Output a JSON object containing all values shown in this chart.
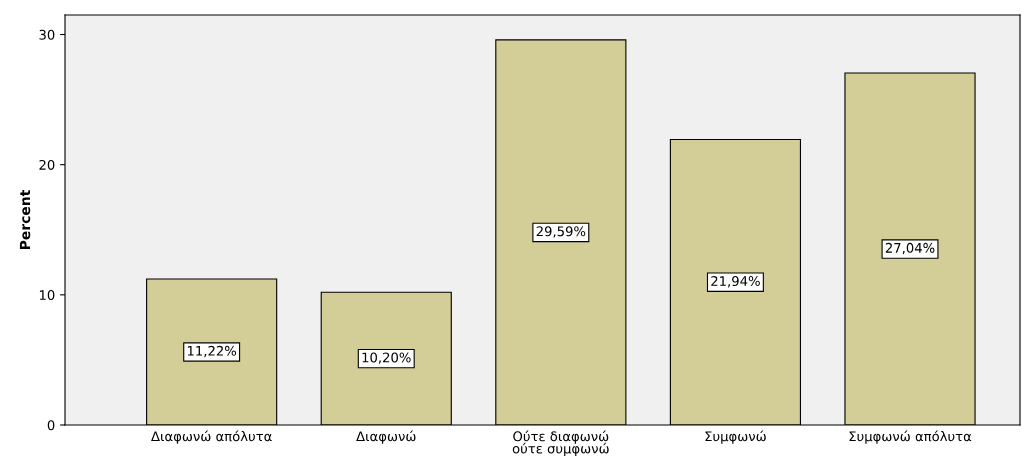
{
  "chart_data": {
    "type": "bar",
    "ylabel": "Percent",
    "categories": [
      "Διαφωνώ απόλυτα",
      "Διαφωνώ",
      "Ούτε διαφωνώ ούτε συμφωνώ",
      "Συμφωνώ",
      "Συμφωνώ απόλυτα"
    ],
    "values": [
      11.22,
      10.2,
      29.59,
      21.94,
      27.04
    ],
    "value_labels": [
      "11,22%",
      "10,20%",
      "29,59%",
      "21,94%",
      "27,04%"
    ],
    "color": "#d3ce97",
    "ylim": [
      0,
      31.5
    ],
    "yticks": [
      0,
      10,
      20,
      30
    ],
    "grid": false,
    "legend": false
  }
}
